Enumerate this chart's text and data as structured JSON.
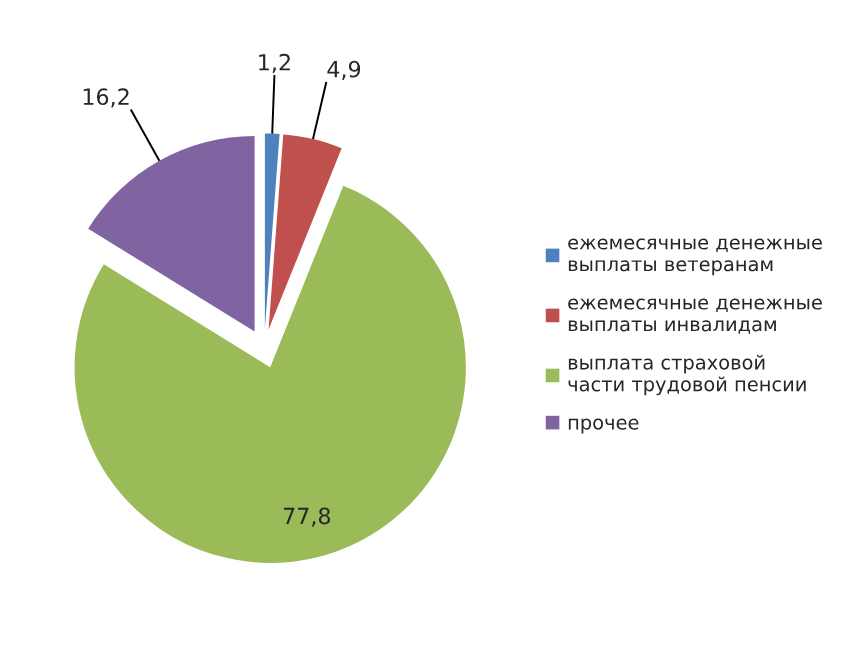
{
  "chart_data": {
    "type": "pie",
    "categories": [
      "ежемесячные денежные выплаты ветеранам",
      "ежемесячные денежные выплаты инвалидам",
      "выплата страховой части трудовой пенсии",
      "прочее"
    ],
    "values": [
      1.2,
      4.9,
      77.8,
      16.2
    ],
    "value_labels": [
      "1,2",
      "4,9",
      "77,8",
      "16,2"
    ],
    "colors": [
      "#4f81bd",
      "#c0504d",
      "#9bbb59",
      "#8064a2"
    ],
    "legend": "right"
  }
}
